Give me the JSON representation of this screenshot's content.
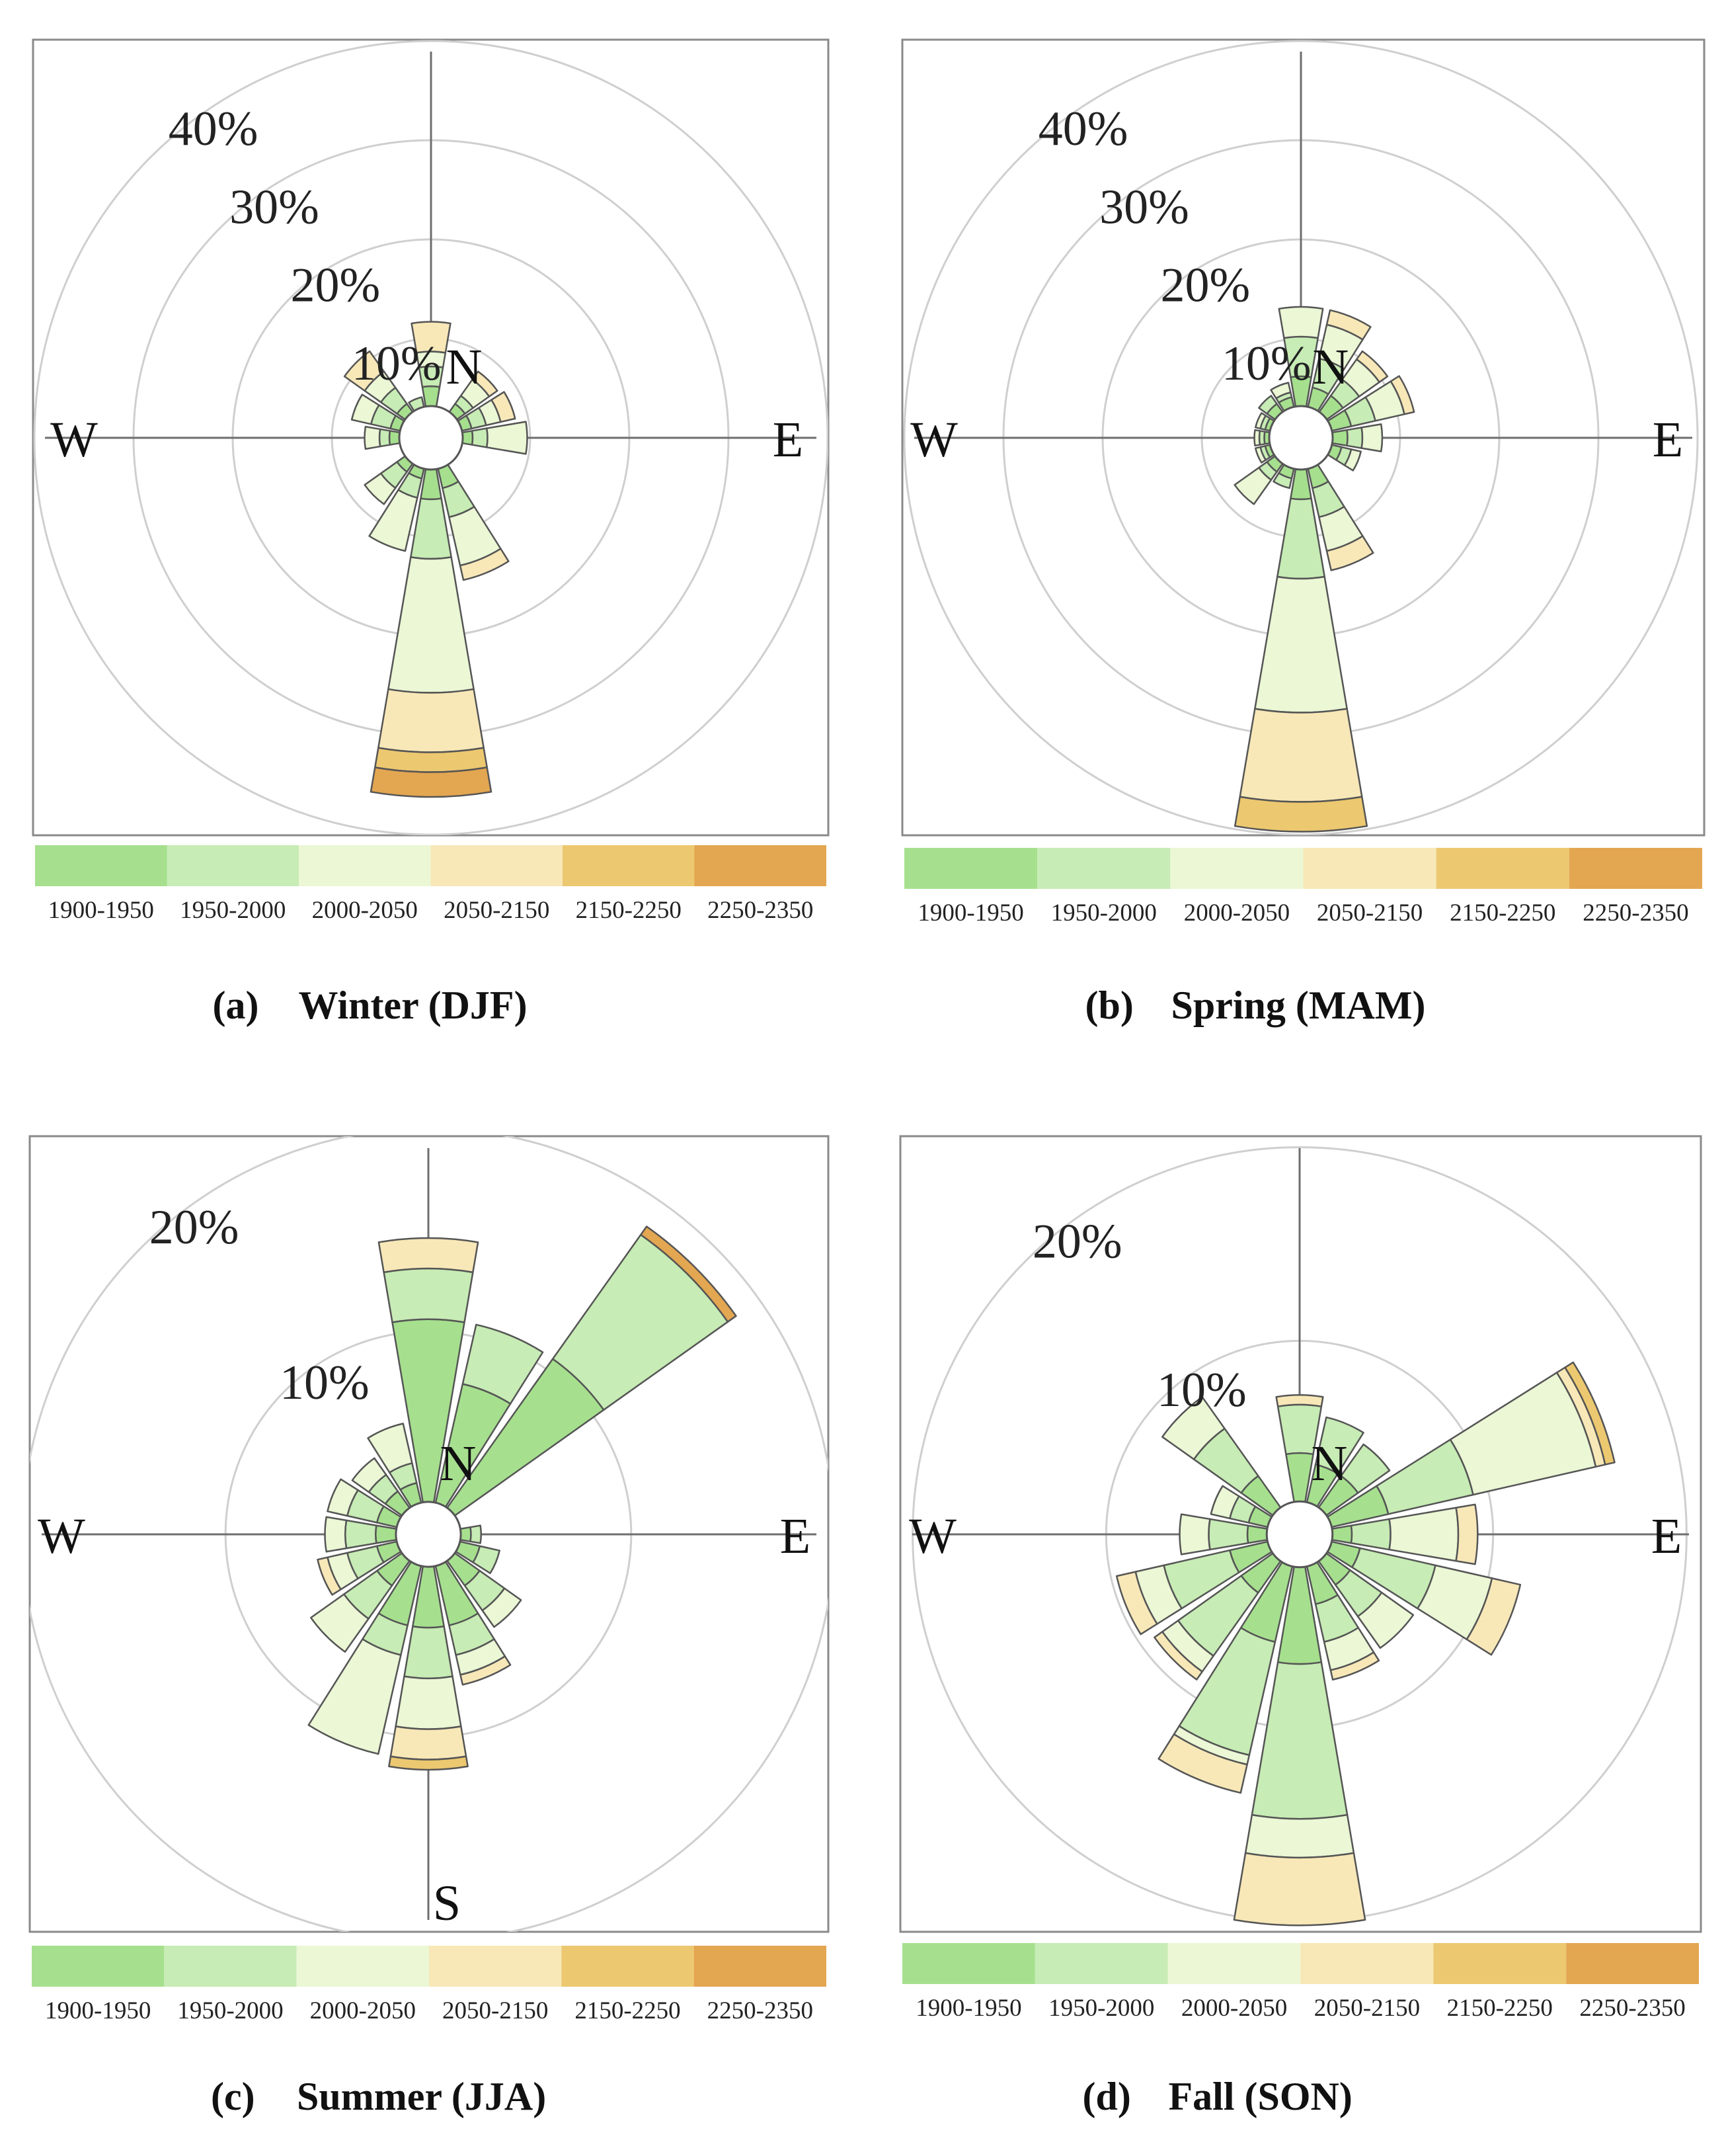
{
  "chart_data": [
    {
      "type": "rose",
      "panel_label": "(a)",
      "title": "Winter (DJF)",
      "directions": [
        "N",
        "NNE",
        "NE",
        "ENE",
        "E",
        "ESE",
        "SE",
        "SSE",
        "S",
        "SSW",
        "SW",
        "WSW",
        "W",
        "WNW",
        "NW",
        "NNW"
      ],
      "compass_labels": [
        "N",
        "E",
        "W"
      ],
      "ring_labels": [
        "10%",
        "20%",
        "30%",
        "40%"
      ],
      "rings": [
        10,
        20,
        30,
        40
      ],
      "rmax": 40,
      "hole": 3.2,
      "bins": [
        "1900-1950",
        "1950-2000",
        "2000-2050",
        "2050-2150",
        "2150-2250",
        "2250-2350"
      ],
      "stacks": [
        [
          2,
          2,
          1.5,
          3,
          0,
          0
        ],
        [
          0,
          0,
          0,
          0,
          0,
          0
        ],
        [
          1,
          1,
          2,
          1,
          0,
          0
        ],
        [
          1,
          1.5,
          1.5,
          1.5,
          0,
          0
        ],
        [
          1,
          1.5,
          4,
          0,
          0,
          0
        ],
        [
          0,
          0,
          0,
          0,
          0,
          0
        ],
        [
          0,
          0,
          0,
          0,
          0,
          0
        ],
        [
          2,
          3,
          5,
          1.5,
          0,
          0
        ],
        [
          3,
          6,
          13.5,
          6,
          2,
          2.5
        ],
        [
          1,
          2,
          5.5,
          0,
          0,
          0
        ],
        [
          1,
          2,
          2,
          0,
          0,
          0
        ],
        [
          0,
          0,
          0,
          0,
          0,
          0
        ],
        [
          1,
          1,
          1.5,
          0,
          0,
          0
        ],
        [
          1,
          2,
          2,
          0,
          0,
          0
        ],
        [
          1,
          2,
          2,
          2.5,
          0,
          0
        ],
        [
          0,
          1,
          0,
          0,
          0,
          0
        ]
      ]
    },
    {
      "type": "rose",
      "panel_label": "(b)",
      "title": "Spring (MAM)",
      "directions": [
        "N",
        "NNE",
        "NE",
        "ENE",
        "E",
        "ESE",
        "SE",
        "SSE",
        "S",
        "SSW",
        "SW",
        "WSW",
        "W",
        "WNW",
        "NW",
        "NNW"
      ],
      "compass_labels": [
        "N",
        "E",
        "W"
      ],
      "ring_labels": [
        "10%",
        "20%",
        "30%",
        "40%"
      ],
      "rings": [
        10,
        20,
        30,
        40
      ],
      "rmax": 40,
      "hole": 3.2,
      "bins": [
        "1900-1950",
        "1950-2000",
        "2000-2050",
        "2050-2150",
        "2150-2250",
        "2250-2350"
      ],
      "stacks": [
        [
          3,
          4,
          3,
          0,
          0,
          0
        ],
        [
          2,
          3,
          3.5,
          1.5,
          0,
          0
        ],
        [
          2,
          2,
          2.5,
          1,
          0,
          0
        ],
        [
          2,
          2.5,
          3,
          1,
          0,
          0
        ],
        [
          1.5,
          1.5,
          2,
          0,
          0,
          0
        ],
        [
          1,
          1,
          1,
          0,
          0,
          0
        ],
        [
          0,
          0,
          0,
          0,
          0,
          0
        ],
        [
          2,
          3,
          3.5,
          2,
          0,
          0
        ],
        [
          3,
          8,
          13.5,
          9,
          3,
          0
        ],
        [
          1,
          1,
          0,
          0,
          0,
          0
        ],
        [
          1,
          1,
          3,
          0,
          0,
          0
        ],
        [
          0.5,
          0.5,
          0.5,
          0,
          0,
          0
        ],
        [
          0.5,
          0.5,
          0.5,
          0,
          0,
          0
        ],
        [
          0.5,
          0.5,
          0.5,
          0,
          0,
          0
        ],
        [
          1,
          1,
          0,
          0,
          0,
          0
        ],
        [
          1,
          0.5,
          1,
          0,
          0,
          0
        ]
      ]
    },
    {
      "type": "rose",
      "panel_label": "(c)",
      "title": "Summer (JJA)",
      "directions": [
        "N",
        "NNE",
        "NE",
        "ENE",
        "E",
        "ESE",
        "SE",
        "SSE",
        "S",
        "SSW",
        "SW",
        "WSW",
        "W",
        "WNW",
        "NW",
        "NNW"
      ],
      "compass_labels": [
        "N",
        "E",
        "W",
        "S"
      ],
      "ring_labels": [
        "10%",
        "20%"
      ],
      "rings": [
        10,
        20
      ],
      "rmax": 20.5,
      "hole": 1.6,
      "bins": [
        "1900-1950",
        "1950-2000",
        "2000-2050",
        "2050-2150",
        "2150-2250",
        "2250-2350"
      ],
      "stacks": [
        [
          9,
          2.5,
          0,
          1.5,
          0,
          0
        ],
        [
          6,
          3,
          0,
          0,
          0,
          0
        ],
        [
          9,
          7.5,
          0,
          0,
          0,
          0.5
        ],
        [
          0,
          0,
          0,
          0,
          0,
          0
        ],
        [
          0.5,
          0.5,
          0,
          0,
          0,
          0
        ],
        [
          1,
          1,
          0,
          0,
          0,
          0
        ],
        [
          1.5,
          1.5,
          1,
          0,
          0,
          0
        ],
        [
          3,
          1.5,
          1,
          0.5,
          0,
          0
        ],
        [
          3,
          2.5,
          2.5,
          1.5,
          0.5,
          0
        ],
        [
          3,
          1.5,
          5,
          0,
          0,
          0
        ],
        [
          1.5,
          2,
          2,
          0,
          0,
          0
        ],
        [
          1,
          1.5,
          1,
          0.5,
          0,
          0
        ],
        [
          1,
          1.5,
          1,
          0,
          0,
          0
        ],
        [
          1,
          1.5,
          1,
          0,
          0,
          0
        ],
        [
          1,
          1,
          1,
          0,
          0,
          0
        ],
        [
          1,
          1,
          2,
          0,
          0,
          0
        ]
      ]
    },
    {
      "type": "rose",
      "panel_label": "(d)",
      "title": "Fall (SON)",
      "directions": [
        "N",
        "NNE",
        "NE",
        "ENE",
        "E",
        "ESE",
        "SE",
        "SSE",
        "S",
        "SSW",
        "SW",
        "WSW",
        "W",
        "WNW",
        "NW",
        "NNW"
      ],
      "compass_labels": [
        "N",
        "E",
        "W"
      ],
      "ring_labels": [
        "10%",
        "20%"
      ],
      "rings": [
        10,
        20
      ],
      "rmax": 20.5,
      "hole": 1.7,
      "bins": [
        "1900-1950",
        "1950-2000",
        "2000-2050",
        "2050-2150",
        "2150-2250",
        "2250-2350"
      ],
      "stacks": [
        [
          2.5,
          2.5,
          0,
          0.5,
          0,
          0
        ],
        [
          2,
          2.5,
          0,
          0,
          0,
          0
        ],
        [
          2,
          2,
          0,
          0,
          0,
          0
        ],
        [
          3,
          4.5,
          6.5,
          0.5,
          0.5,
          0
        ],
        [
          1,
          2,
          3.5,
          1,
          0,
          0
        ],
        [
          1.5,
          4,
          3,
          1.5,
          0,
          0
        ],
        [
          1.5,
          2,
          2,
          0,
          0,
          0
        ],
        [
          2,
          2,
          1.5,
          0.5,
          0,
          0
        ],
        [
          5,
          8,
          2,
          3.5,
          0,
          0
        ],
        [
          4,
          6,
          0.5,
          1.5,
          0,
          0
        ],
        [
          2,
          4,
          1,
          0.5,
          0,
          0
        ],
        [
          2,
          3.5,
          1.5,
          1,
          0,
          0
        ],
        [
          1,
          2,
          1.5,
          0,
          0,
          0
        ],
        [
          1,
          1,
          1,
          0,
          0,
          0
        ],
        [
          2,
          3,
          2,
          0,
          0,
          0
        ],
        [
          0,
          0,
          0,
          0,
          0,
          0
        ]
      ]
    }
  ],
  "colors": [
    "#a6e08e",
    "#c7ecb5",
    "#ebf7d5",
    "#f8e8b8",
    "#ecc870",
    "#e3a651"
  ]
}
